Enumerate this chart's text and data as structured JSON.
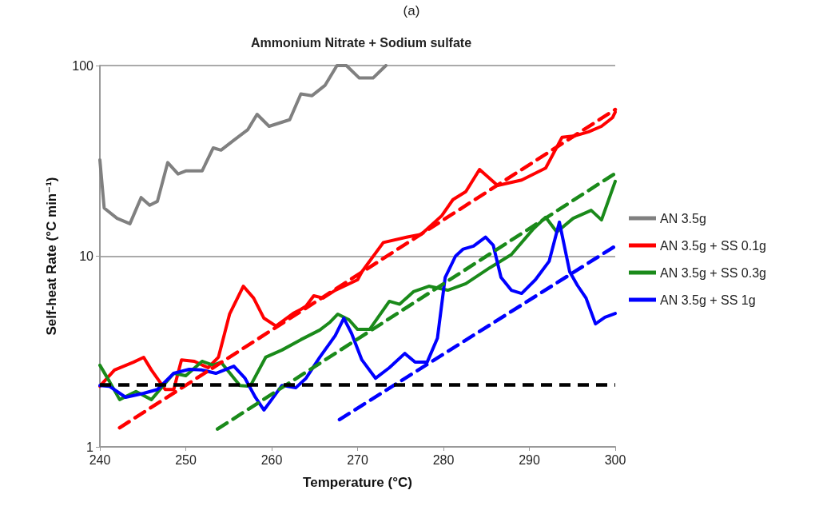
{
  "chart_data": {
    "type": "line",
    "title": "Ammonium Nitrate + Sodium sulfate",
    "xlabel": "Temperature (°C)",
    "ylabel": "Self-heat Rate (°C min⁻¹)",
    "annotations": [
      "(a)"
    ],
    "log": "y",
    "xlim": [
      240,
      300
    ],
    "xticks": [
      240,
      250,
      260,
      270,
      280,
      290,
      300
    ],
    "ylim": [
      1,
      100
    ],
    "yticks": [
      1,
      10,
      100
    ],
    "grid": "y",
    "legend": "right",
    "marker": "none",
    "line_style": "solid",
    "ref_lines": [
      {
        "axis": "y",
        "value": 2.12,
        "label": null,
        "color": "#000000",
        "line_style": "dashed"
      }
    ],
    "series": [
      {
        "name": "AN 3.5g",
        "color": "#808080",
        "x": [
          240,
          240.5,
          242.0,
          243.5,
          244.8,
          245.8,
          246.7,
          247.9,
          249.1,
          250.0,
          251.9,
          253.2,
          254.1,
          255.6,
          257.2,
          258.3,
          259.7,
          262.1,
          263.4,
          264.7,
          266.2,
          267.6,
          268.7,
          270.2,
          271.8,
          273.3
        ],
        "values": [
          32,
          17.9,
          15.8,
          14.8,
          20.3,
          18.5,
          19.4,
          31,
          27,
          28,
          28,
          37,
          36,
          40.6,
          46,
          55.5,
          48,
          52,
          71,
          69.5,
          78.6,
          100,
          100,
          86,
          86,
          100
        ]
      },
      {
        "name": "AN 3.5g + SS 0.1g",
        "color": "#ff0000",
        "x": [
          240,
          241.7,
          243.9,
          245.1,
          246.0,
          247.6,
          248.6,
          249.5,
          251.0,
          252.6,
          253.8,
          255.1,
          256.7,
          257.9,
          259.1,
          260.5,
          262.5,
          263.4,
          264.0,
          264.9,
          266.0,
          267.4,
          270.0,
          270.5,
          273.0,
          275.8,
          277.4,
          279.8,
          281.1,
          282.6,
          284.2,
          286.3,
          289.1,
          291.9,
          293.8,
          295.3,
          296.9,
          298.4,
          299.7,
          300
        ],
        "values": [
          2.08,
          2.53,
          2.78,
          2.95,
          2.53,
          2.0,
          2.0,
          2.86,
          2.81,
          2.6,
          2.95,
          4.97,
          6.96,
          6.03,
          4.73,
          4.3,
          5.01,
          5.26,
          5.47,
          6.2,
          6.03,
          6.63,
          7.52,
          8.28,
          11.8,
          12.6,
          13.0,
          16.3,
          19.8,
          21.8,
          28.5,
          23.5,
          25.1,
          29.0,
          42,
          42.8,
          44.9,
          48,
          53.4,
          57
        ]
      },
      {
        "name": "AN 3.5g + SS 0.3g",
        "color": "#1a8a1a",
        "x": [
          240,
          241.1,
          242.3,
          244.2,
          246.0,
          247.0,
          248.6,
          250.0,
          251.9,
          253.2,
          254.1,
          256.3,
          257.5,
          259.3,
          261.2,
          263.4,
          265.6,
          266.8,
          267.7,
          269.0,
          270.0,
          271.4,
          273.7,
          274.9,
          276.5,
          278.3,
          280.5,
          282.6,
          285.4,
          287.9,
          290.4,
          291.9,
          293.2,
          295.1,
          297.2,
          298.4,
          300
        ],
        "values": [
          2.68,
          2.21,
          1.77,
          1.95,
          1.77,
          2.0,
          2.43,
          2.36,
          2.81,
          2.68,
          2.78,
          2.1,
          2.08,
          2.95,
          3.22,
          3.65,
          4.1,
          4.51,
          4.97,
          4.64,
          4.13,
          4.13,
          5.8,
          5.6,
          6.51,
          6.96,
          6.63,
          7.17,
          8.7,
          10.2,
          13.8,
          16.0,
          13.4,
          15.8,
          17.4,
          15.5,
          24.7
        ]
      },
      {
        "name": "AN 3.5g + SS 1g",
        "color": "#0000ff",
        "x": [
          240,
          241.1,
          243.0,
          245.1,
          246.7,
          248.6,
          250.4,
          251.9,
          253.5,
          255.6,
          256.9,
          258.1,
          259.1,
          260.0,
          261.2,
          262.8,
          264.0,
          265.6,
          267.4,
          268.4,
          269.3,
          270.5,
          272.1,
          273.7,
          275.5,
          276.7,
          278.1,
          279.3,
          280.2,
          281.4,
          282.3,
          283.5,
          284.9,
          285.8,
          286.7,
          287.9,
          289.1,
          290.7,
          292.3,
          293.5,
          294.7,
          295.6,
          296.6,
          297.7,
          298.8,
          300
        ],
        "values": [
          2.1,
          2.08,
          1.82,
          1.91,
          2.0,
          2.43,
          2.55,
          2.53,
          2.43,
          2.65,
          2.29,
          1.82,
          1.56,
          1.77,
          2.1,
          2.04,
          2.29,
          2.95,
          3.83,
          4.73,
          3.94,
          2.86,
          2.29,
          2.6,
          3.09,
          2.78,
          2.78,
          3.72,
          7.74,
          10,
          10.9,
          11.3,
          12.6,
          11.4,
          7.74,
          6.63,
          6.38,
          7.52,
          9.4,
          15.1,
          8.28,
          7.03,
          6.03,
          4.42,
          4.78,
          5.01
        ]
      },
      {
        "type": "line",
        "color": "#ff0000",
        "line_style": "dashed",
        "x": [
          242.3,
          300
        ],
        "values": [
          1.26,
          58.8
        ]
      },
      {
        "type": "line",
        "color": "#1a8a1a",
        "line_style": "dashed",
        "x": [
          253.7,
          300
        ],
        "values": [
          1.24,
          27.2
        ]
      },
      {
        "type": "line",
        "color": "#0000ff",
        "line_style": "dashed",
        "x": [
          267.9,
          300
        ],
        "values": [
          1.39,
          11.3
        ]
      }
    ]
  }
}
